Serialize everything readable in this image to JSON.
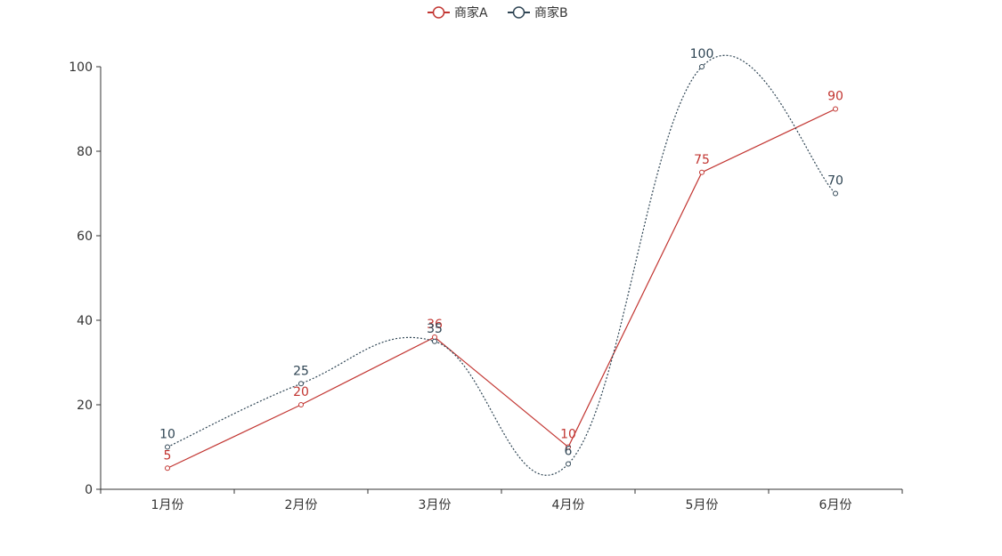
{
  "chart_data": {
    "type": "line",
    "categories": [
      "1月份",
      "2月份",
      "3月份",
      "4月份",
      "5月份",
      "6月份"
    ],
    "series": [
      {
        "name": "商家A",
        "values": [
          5,
          20,
          36,
          10,
          75,
          90
        ],
        "color": "#c23531",
        "smooth": false,
        "line_style": "solid"
      },
      {
        "name": "商家B",
        "values": [
          10,
          25,
          35,
          6,
          100,
          70
        ],
        "color": "#2f4554",
        "smooth": true,
        "line_style": "dotted"
      }
    ],
    "ylim": [
      0,
      100
    ],
    "y_ticks": [
      "0",
      "20",
      "40",
      "60",
      "80",
      "100"
    ],
    "grid": false,
    "legend_position": "top-center",
    "data_labels": true
  }
}
